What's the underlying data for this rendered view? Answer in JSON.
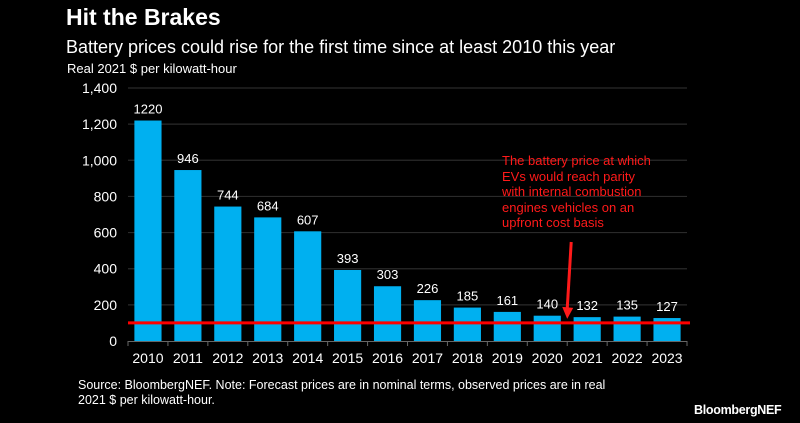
{
  "chart_data": {
    "type": "bar",
    "title": "Hit the Brakes",
    "subtitle": "Battery prices could rise for the first time since at least 2010 this year",
    "ylabel": "Real 2021 $ per kilowatt-hour",
    "xlabel": "",
    "categories": [
      "2010",
      "2011",
      "2012",
      "2013",
      "2014",
      "2015",
      "2016",
      "2017",
      "2018",
      "2019",
      "2020",
      "2021",
      "2022",
      "2023"
    ],
    "values": [
      1220,
      946,
      744,
      684,
      607,
      393,
      303,
      226,
      185,
      161,
      140,
      132,
      135,
      127
    ],
    "ylim": [
      0,
      1400
    ],
    "yticks": [
      0,
      200,
      400,
      600,
      800,
      1000,
      1200,
      1400
    ],
    "ytick_labels": [
      "0",
      "200",
      "400",
      "600",
      "800",
      "1,000",
      "1,200",
      "1,400"
    ],
    "grid": true,
    "reference_line": {
      "value": 100,
      "color": "#ff0000"
    },
    "annotation": {
      "text_lines": [
        "The battery price at which",
        "EVs would reach parity",
        "with internal combustion",
        "engines vehicles on an",
        "upfront cost basis"
      ],
      "arrow_target_between": [
        "2020",
        "2021"
      ]
    },
    "bar_color": "#00b0f0"
  },
  "footer": {
    "source_line1": "Source: BloombergNEF. Note: Forecast prices are in nominal terms, observed prices are in real",
    "source_line2": "2021 $ per kilowatt-hour.",
    "brand": "BloombergNEF"
  }
}
